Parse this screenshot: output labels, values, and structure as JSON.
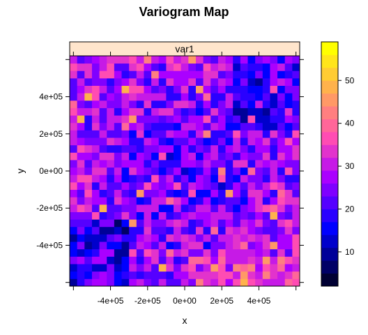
{
  "chart_data": {
    "type": "heatmap",
    "title": "Variogram Map",
    "panel_label": "var1",
    "xlabel": "x",
    "ylabel": "y",
    "xlim": [
      -620000,
      620000
    ],
    "ylim": [
      -620000,
      620000
    ],
    "x_ticks": [
      -400000,
      -200000,
      0,
      200000,
      400000
    ],
    "y_ticks": [
      -400000,
      -200000,
      0,
      200000,
      400000
    ],
    "x_tick_labels": [
      "-4e+05",
      "-2e+05",
      "0e+00",
      "2e+05",
      "4e+05"
    ],
    "y_tick_labels": [
      "-4e+05",
      "-2e+05",
      "0e+00",
      "2e+05",
      "4e+05"
    ],
    "colorbar": {
      "min": 2,
      "max": 59,
      "ticks": [
        10,
        20,
        30,
        40,
        50
      ],
      "tick_labels": [
        "10",
        "20",
        "30",
        "40",
        "50"
      ],
      "colors": [
        "#000033",
        "#000066",
        "#000099",
        "#0000CC",
        "#0000FF",
        "#2A00FF",
        "#5500FF",
        "#7F00FF",
        "#AA00FF",
        "#C61AE6",
        "#E233CC",
        "#FF4CB3",
        "#FF6699",
        "#FF7F80",
        "#FF9966",
        "#FFB24C",
        "#FFCC33",
        "#FFE51A",
        "#FFFF00"
      ]
    },
    "grid": {
      "nx": 31,
      "ny": 31,
      "cell_size": 40000
    },
    "legend": "right",
    "grid_lines": false
  }
}
